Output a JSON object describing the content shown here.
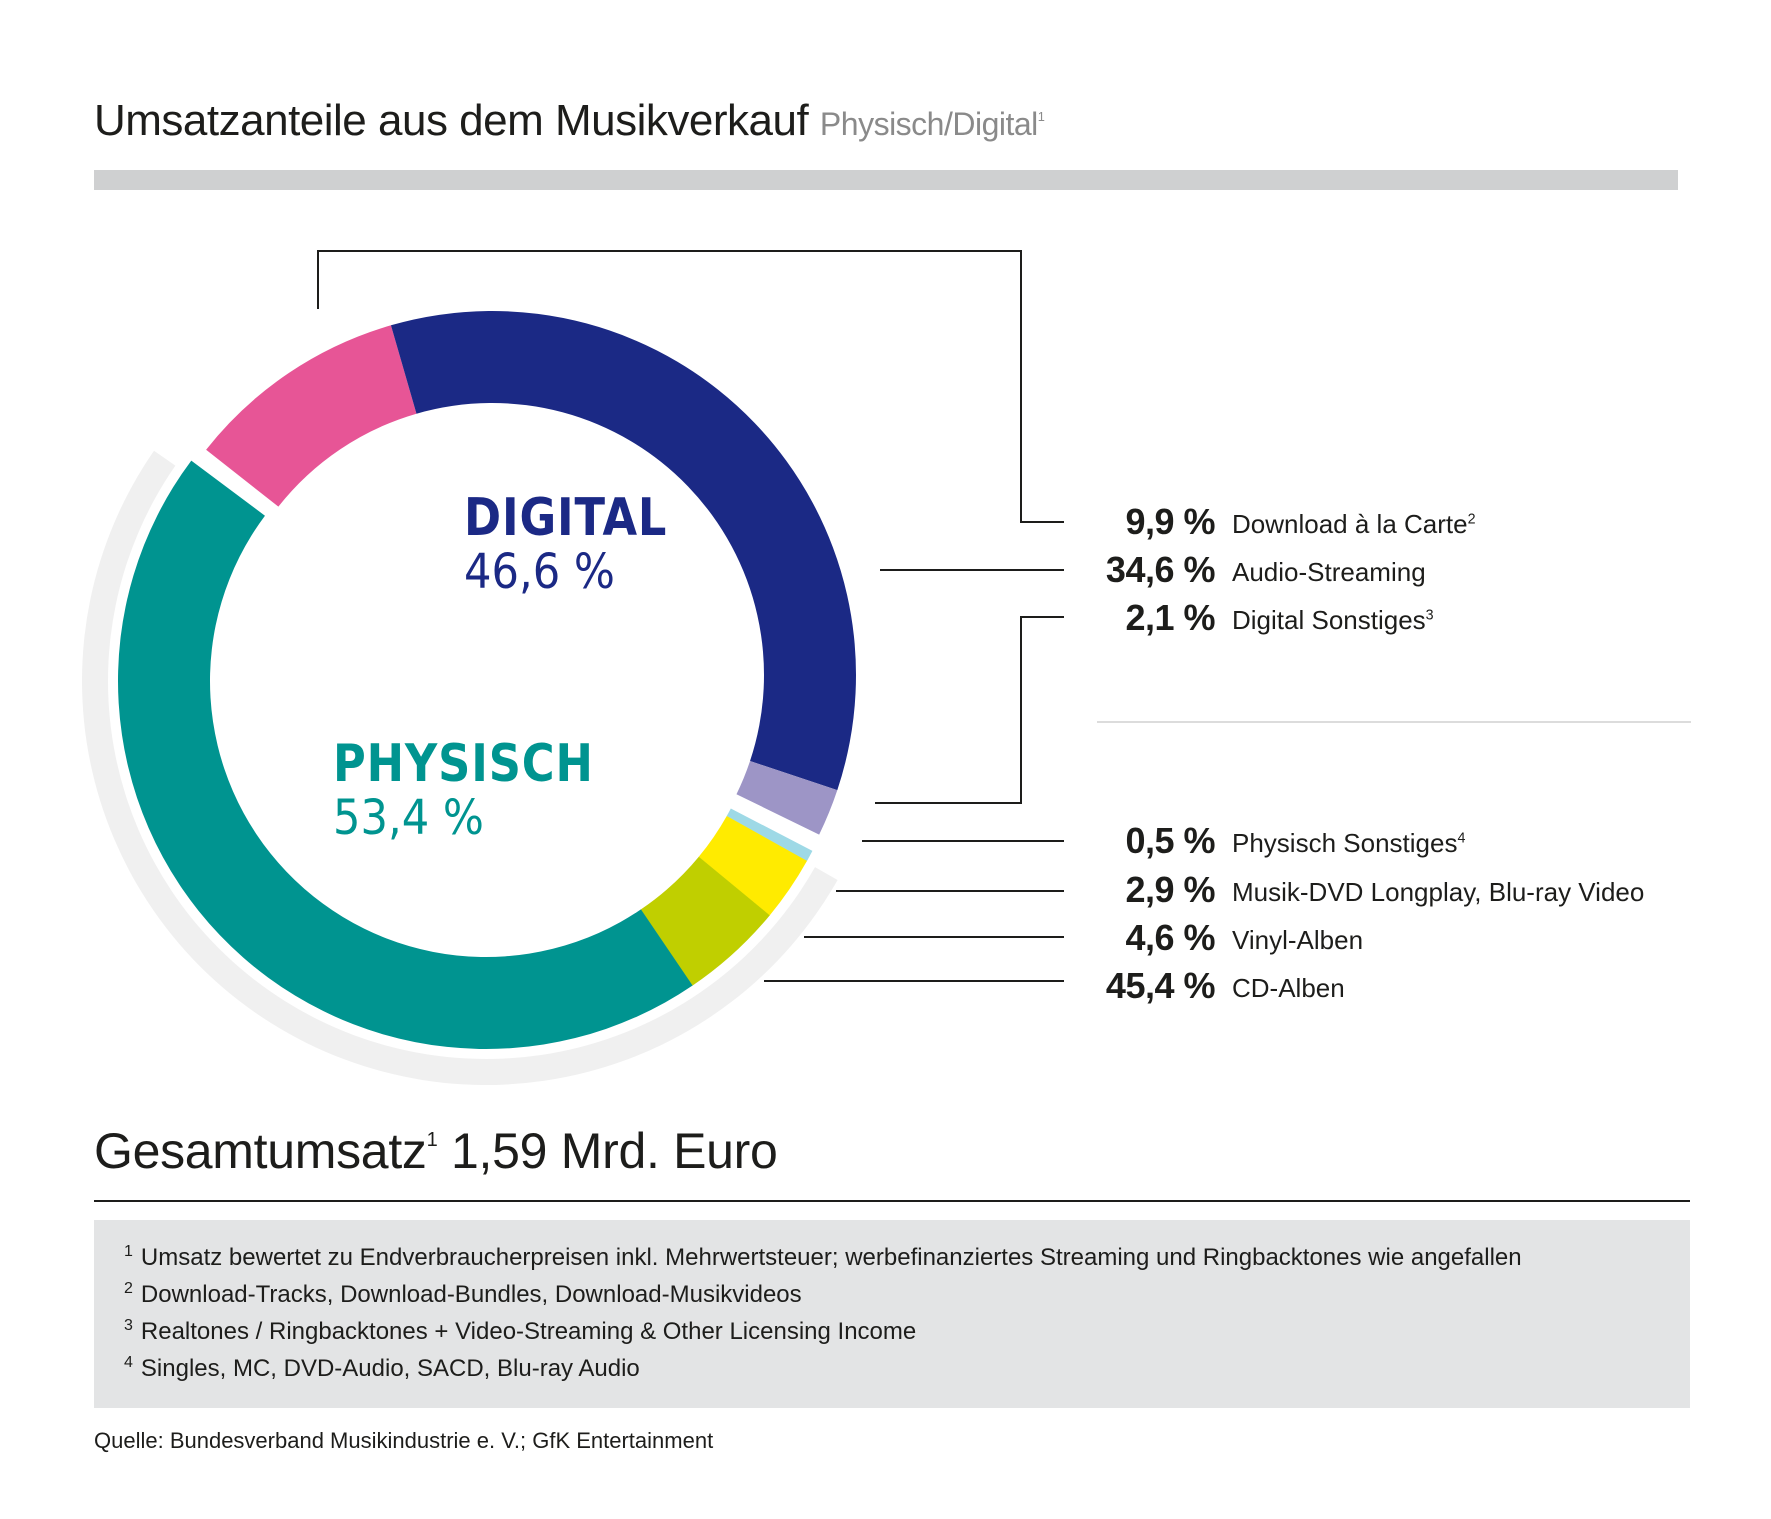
{
  "header": {
    "title": "Umsatzanteile aus dem Musikverkauf",
    "subtitle": "Physisch/Digital",
    "subtitle_footnote": "1"
  },
  "center_labels": {
    "digital": {
      "label": "DIGITAL",
      "value": "46,6 %"
    },
    "physisch": {
      "label": "PHYSISCH",
      "value": "53,4 %"
    }
  },
  "legend": {
    "digital": [
      {
        "value": "9,9 %",
        "label": "Download à la Carte",
        "footnote": "2"
      },
      {
        "value": "34,6 %",
        "label": "Audio-Streaming",
        "footnote": ""
      },
      {
        "value": "2,1 %",
        "label": "Digital Sonstiges",
        "footnote": "3"
      }
    ],
    "physisch": [
      {
        "value": "0,5 %",
        "label": "Physisch Sonstiges",
        "footnote": "4"
      },
      {
        "value": "2,9 %",
        "label": "Musik-DVD Longplay, Blu-ray Video",
        "footnote": ""
      },
      {
        "value": "4,6 %",
        "label": "Vinyl-Alben",
        "footnote": ""
      },
      {
        "value": "45,4 %",
        "label": "CD-Alben",
        "footnote": ""
      }
    ]
  },
  "total": {
    "label": "Gesamtumsatz",
    "footnote": "1",
    "value": "1,59 Mrd. Euro"
  },
  "footnotes": [
    {
      "num": "1",
      "text": "Umsatz bewertet zu Endverbraucherpreisen inkl. Mehrwertsteuer; werbefinanziertes Streaming und Ringbacktones wie angefallen"
    },
    {
      "num": "2",
      "text": "Download-Tracks, Download-Bundles, Download-Musikvideos"
    },
    {
      "num": "3",
      "text": "Realtones / Ringbacktones + Video-Streaming & Other Licensing Income"
    },
    {
      "num": "4",
      "text": "Singles, MC, DVD-Audio, SACD, Blu-ray Audio"
    }
  ],
  "source": "Quelle: Bundesverband Musikindustrie e. V.; GfK Entertainment",
  "chart_data": {
    "type": "pie",
    "variant": "donut",
    "title": "Umsatzanteile aus dem Musikverkauf Physisch/Digital",
    "unit": "%",
    "groups": [
      {
        "name": "Digital",
        "total": 46.6,
        "color": "#1b2985",
        "slices": [
          {
            "name": "Download à la Carte",
            "value": 9.9,
            "color": "#e75596"
          },
          {
            "name": "Audio-Streaming",
            "value": 34.6,
            "color": "#1b2985"
          },
          {
            "name": "Digital Sonstiges",
            "value": 2.1,
            "color": "#9d95c6"
          }
        ]
      },
      {
        "name": "Physisch",
        "total": 53.4,
        "color": "#009490",
        "slices": [
          {
            "name": "Physisch Sonstiges",
            "value": 0.5,
            "color": "#9ed9e6"
          },
          {
            "name": "Musik-DVD Longplay, Blu-ray Video",
            "value": 2.9,
            "color": "#ffeb00"
          },
          {
            "name": "Vinyl-Alben",
            "value": 4.6,
            "color": "#c0cf00"
          },
          {
            "name": "CD-Alben",
            "value": 45.4,
            "color": "#009490"
          }
        ]
      }
    ],
    "physisch_backdrop_color": "#f0f0f0",
    "legend_position": "right"
  }
}
